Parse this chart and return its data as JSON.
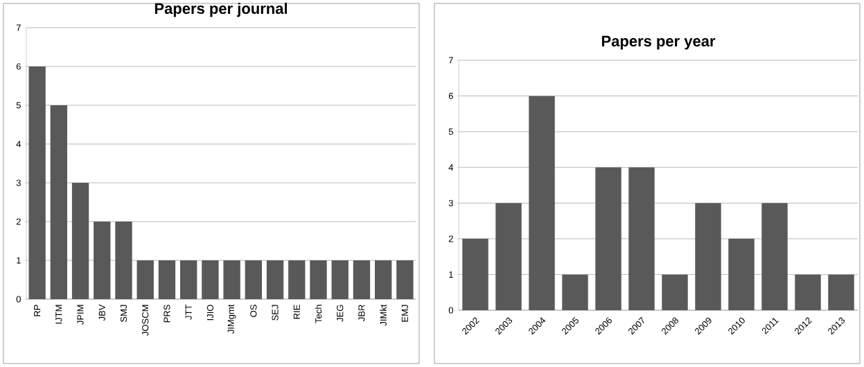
{
  "chart_data": [
    {
      "type": "bar",
      "title": "Papers per journal",
      "categories": [
        "RP",
        "IJTM",
        "JPIM",
        "JBV",
        "SMJ",
        "JOSCM",
        "PRS",
        "JTT",
        "IJIO",
        "JIMgmt",
        "OS",
        "SEJ",
        "RIE",
        "Tech",
        "JEG",
        "JBR",
        "JIMkt",
        "EMJ"
      ],
      "values": [
        6,
        5,
        3,
        2,
        2,
        1,
        1,
        1,
        1,
        1,
        1,
        1,
        1,
        1,
        1,
        1,
        1,
        1
      ],
      "color": "#595959",
      "ylim": [
        0,
        7
      ],
      "yticks": [
        0,
        1,
        2,
        3,
        4,
        5,
        6,
        7
      ],
      "grid": "y"
    },
    {
      "type": "bar",
      "title": "Papers per year",
      "categories": [
        "2002",
        "2003",
        "2004",
        "2005",
        "2006",
        "2007",
        "2008",
        "2009",
        "2010",
        "2011",
        "2012",
        "2013"
      ],
      "values": [
        2,
        3,
        6,
        1,
        4,
        4,
        1,
        3,
        2,
        3,
        1,
        1
      ],
      "color": "#595959",
      "ylim": [
        0,
        7
      ],
      "yticks": [
        0,
        1,
        2,
        3,
        4,
        5,
        6,
        7
      ],
      "grid": "y"
    }
  ]
}
